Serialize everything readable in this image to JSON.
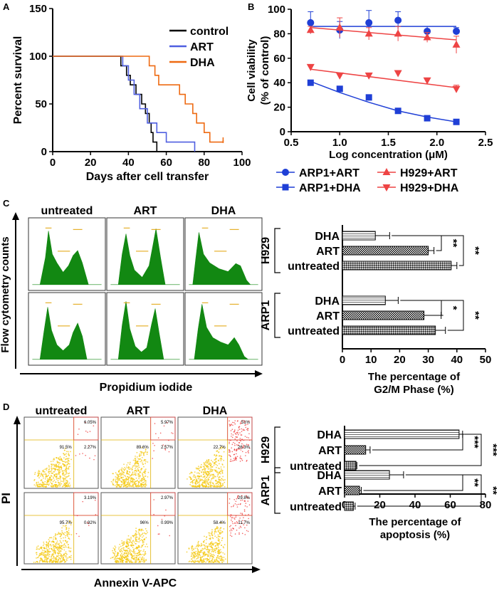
{
  "panel_labels": {
    "a": "A",
    "b": "B",
    "c": "C",
    "d": "D"
  },
  "colors": {
    "control": "#000000",
    "art": "#4f5fe0",
    "dha": "#ee6a12",
    "blue": "#1f3fd6",
    "red": "#ee4444",
    "green": "#128812",
    "pink": "#d83a3a",
    "yellow": "#f3c500"
  },
  "chart_data": [
    {
      "id": "A",
      "type": "line",
      "subtype": "kaplan-meier",
      "ylabel": "Percent survival",
      "xlabel": "Days after cell transfer",
      "xlim": [
        0,
        100
      ],
      "ylim": [
        0,
        150
      ],
      "xticks": [
        "0",
        "20",
        "40",
        "60",
        "80",
        "100"
      ],
      "yticks": [
        "0",
        "50",
        "100",
        "150"
      ],
      "legend": {
        "position": "top-right",
        "entries": [
          "control",
          "ART",
          "DHA"
        ]
      },
      "series": [
        {
          "name": "control",
          "steps": [
            [
              0,
              100
            ],
            [
              36,
              100
            ],
            [
              36,
              90
            ],
            [
              39,
              90
            ],
            [
              39,
              80
            ],
            [
              41,
              80
            ],
            [
              41,
              70
            ],
            [
              44,
              70
            ],
            [
              44,
              60
            ],
            [
              47,
              60
            ],
            [
              47,
              50
            ],
            [
              49,
              50
            ],
            [
              49,
              40
            ],
            [
              51,
              40
            ],
            [
              51,
              30
            ],
            [
              52,
              30
            ],
            [
              52,
              20
            ],
            [
              53,
              20
            ],
            [
              53,
              10
            ],
            [
              55,
              10
            ],
            [
              55,
              0
            ]
          ]
        },
        {
          "name": "ART",
          "steps": [
            [
              0,
              100
            ],
            [
              37,
              100
            ],
            [
              37,
              90
            ],
            [
              40,
              90
            ],
            [
              40,
              75
            ],
            [
              43,
              75
            ],
            [
              43,
              60
            ],
            [
              46,
              60
            ],
            [
              46,
              45
            ],
            [
              50,
              45
            ],
            [
              50,
              30
            ],
            [
              55,
              30
            ],
            [
              55,
              20
            ],
            [
              60,
              20
            ],
            [
              60,
              10
            ],
            [
              75,
              10
            ],
            [
              75,
              0
            ]
          ]
        },
        {
          "name": "DHA",
          "steps": [
            [
              0,
              100
            ],
            [
              51,
              100
            ],
            [
              51,
              90
            ],
            [
              54,
              90
            ],
            [
              54,
              80
            ],
            [
              56,
              80
            ],
            [
              56,
              70
            ],
            [
              67,
              70
            ],
            [
              67,
              60
            ],
            [
              70,
              60
            ],
            [
              70,
              50
            ],
            [
              74,
              50
            ],
            [
              74,
              40
            ],
            [
              76,
              40
            ],
            [
              76,
              30
            ],
            [
              80,
              30
            ],
            [
              80,
              20
            ],
            [
              83,
              20
            ],
            [
              83,
              10
            ],
            [
              90,
              10
            ],
            [
              90,
              12
            ]
          ]
        }
      ]
    },
    {
      "id": "B",
      "type": "scatter",
      "ylabel1": "Cell viability",
      "ylabel2": "(% of control)",
      "xlabel": "Log concentration (μM)",
      "xlim": [
        0.5,
        2.5
      ],
      "ylim": [
        0,
        100
      ],
      "xticks": [
        "0.5",
        "1.0",
        "1.5",
        "2.0",
        "2.5"
      ],
      "yticks": [
        "0",
        "20",
        "40",
        "60",
        "80",
        "100"
      ],
      "legend": {
        "position": "bottom",
        "entries": [
          "ARP1+ART",
          "H929+ART",
          "ARP1+DHA",
          "H929+DHA"
        ]
      },
      "x": [
        0.7,
        1.0,
        1.3,
        1.6,
        1.9,
        2.2
      ],
      "series": [
        {
          "name": "ARP1+ART",
          "marker": "circle",
          "values": [
            89,
            83,
            89,
            91,
            82,
            82
          ],
          "errors": [
            9,
            7,
            10,
            7,
            4,
            3
          ],
          "fit": [
            [
              0.7,
              86
            ],
            [
              2.2,
              86
            ]
          ]
        },
        {
          "name": "H929+ART",
          "marker": "triangle-up",
          "values": [
            83,
            85,
            80,
            80,
            77,
            71
          ],
          "errors": [
            3,
            8,
            5,
            6,
            4,
            7
          ],
          "fit": [
            [
              0.7,
              85
            ],
            [
              2.2,
              75
            ]
          ]
        },
        {
          "name": "H929+DHA",
          "marker": "triangle-down",
          "values": [
            53,
            46,
            46,
            48,
            42,
            35
          ],
          "errors": [
            1,
            2,
            1,
            1,
            1,
            3
          ],
          "fit": [
            [
              0.7,
              51
            ],
            [
              2.2,
              36
            ]
          ]
        },
        {
          "name": "ARP1+DHA",
          "marker": "square",
          "values": [
            40,
            35,
            28,
            17,
            11,
            8
          ],
          "errors": [
            1,
            1,
            2,
            1,
            1,
            1
          ],
          "fit": [
            [
              0.7,
              41
            ],
            [
              1.0,
              32
            ],
            [
              1.3,
              24
            ],
            [
              1.6,
              17
            ],
            [
              1.9,
              12
            ],
            [
              2.2,
              8
            ]
          ]
        }
      ]
    },
    {
      "id": "C-bar",
      "type": "bar",
      "orientation": "horizontal",
      "xlabel1": "The percentage of",
      "xlabel2": "G2/M Phase (%)",
      "xlim": [
        0,
        50
      ],
      "xticks": [
        "0",
        "10",
        "20",
        "30",
        "40",
        "50"
      ],
      "groups": [
        {
          "name": "H929",
          "categories": [
            "DHA",
            "ART",
            "untreated"
          ],
          "values": [
            11.5,
            30,
            38
          ],
          "errors": [
            5,
            2,
            2
          ],
          "significance": [
            {
              "between": [
                "DHA",
                "ART"
              ],
              "label": "**"
            },
            {
              "between": [
                "DHA",
                "untreated"
              ],
              "label": "**"
            }
          ]
        },
        {
          "name": "ARP1",
          "categories": [
            "DHA",
            "ART",
            "untreated"
          ],
          "values": [
            15,
            28.5,
            32.5
          ],
          "errors": [
            4.5,
            6,
            3.5
          ],
          "significance": [
            {
              "between": [
                "DHA",
                "ART"
              ],
              "label": "*"
            },
            {
              "between": [
                "DHA",
                "untreated"
              ],
              "label": "**"
            }
          ]
        }
      ]
    },
    {
      "id": "D-bar",
      "type": "bar",
      "orientation": "horizontal",
      "xlabel1": "The percentage of",
      "xlabel2": "apoptosis  (%)",
      "xlim": [
        0,
        80
      ],
      "xticks": [
        "0",
        "20",
        "40",
        "60",
        "80"
      ],
      "groups": [
        {
          "name": "H929",
          "categories": [
            "DHA",
            "ART",
            "untreated"
          ],
          "values": [
            65,
            12,
            6.5
          ],
          "errors": [
            2,
            2.5,
            0.5
          ],
          "significance": [
            {
              "between": [
                "DHA",
                "ART"
              ],
              "label": "***"
            },
            {
              "between": [
                "DHA",
                "untreated"
              ],
              "label": "***"
            }
          ]
        },
        {
          "name": "ARP1",
          "categories": [
            "DHA",
            "ART",
            "untreated"
          ],
          "values": [
            25.5,
            8.5,
            5
          ],
          "errors": [
            8,
            1,
            1
          ],
          "significance": [
            {
              "between": [
                "DHA",
                "ART"
              ],
              "label": "**"
            },
            {
              "between": [
                "DHA",
                "untreated"
              ],
              "label": "**"
            }
          ]
        }
      ]
    },
    {
      "id": "C-flow",
      "type": "histogram",
      "ylabel": "Flow cytometry counts",
      "xlabel": "Propidium iodide",
      "columns": [
        "untreated",
        "ART",
        "DHA"
      ],
      "rows": [
        "H929",
        "ARP1"
      ]
    },
    {
      "id": "D-flow",
      "type": "scatter",
      "subtype": "flow-cytometry",
      "ylabel": "PI",
      "xlabel": "Annexin V-APC",
      "columns": [
        "untreated",
        "ART",
        "DHA"
      ],
      "quadrants": [
        {
          "row": "H929",
          "col": "untreated",
          "ur": "6.05%",
          "ll": "91.5%",
          "lr": "2.27%",
          "density": 0.05
        },
        {
          "row": "H929",
          "col": "ART",
          "ur": "5.97%",
          "ll": "89.6%",
          "lr": "2.57%",
          "density": 0.06
        },
        {
          "row": "H929",
          "col": "DHA",
          "ur": "51%",
          "ll": "22.7%",
          "lr": "26.3%",
          "density": 0.5
        },
        {
          "row": "ARP1",
          "col": "untreated",
          "ur": "3.19%",
          "ll": "95.7%",
          "lr": "0.92%",
          "density": 0.03
        },
        {
          "row": "ARP1",
          "col": "ART",
          "ur": "2.97%",
          "ll": "96%",
          "lr": "0.99%",
          "density": 0.03
        },
        {
          "row": "ARP1",
          "col": "DHA",
          "ur": "29.8%",
          "ll": "58.4%",
          "lr": "11.7%",
          "density": 0.3
        }
      ]
    }
  ]
}
